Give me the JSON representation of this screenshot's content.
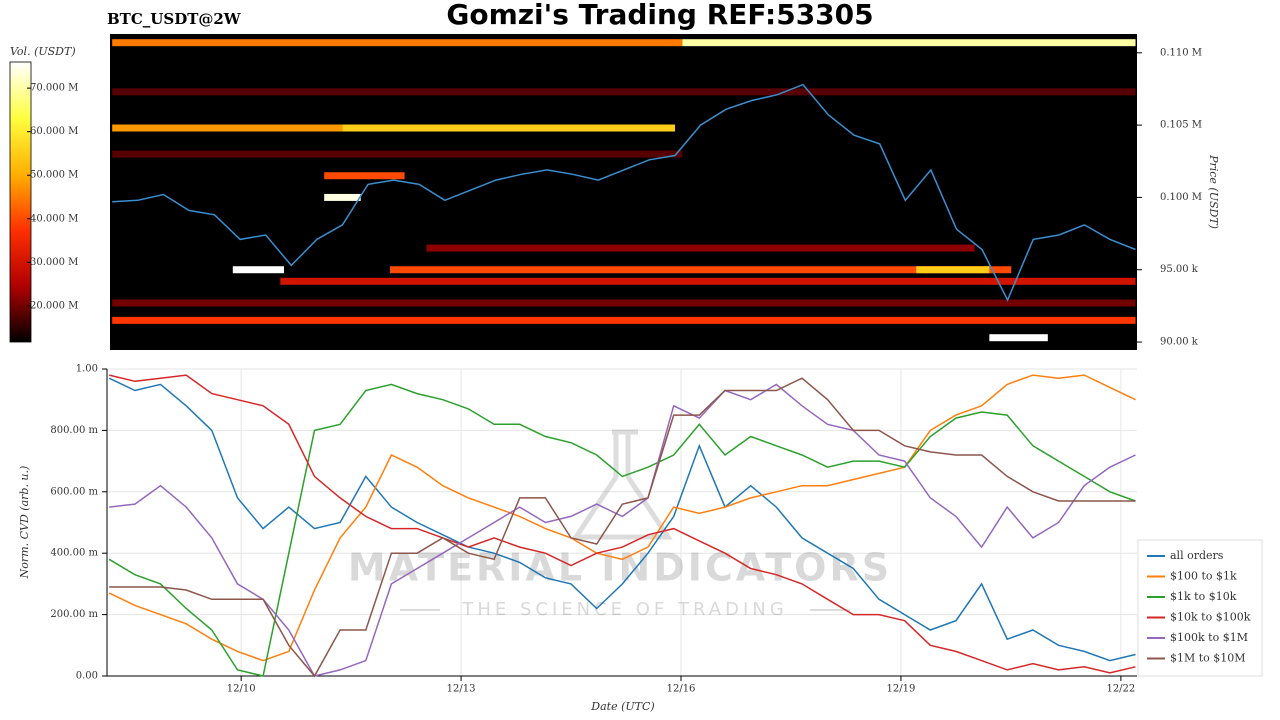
{
  "chart_data": [
    {
      "type": "heatmap",
      "title": "Gomzi's Trading REF:53305",
      "subtitle": "BTC_USDT@2W",
      "xlim": [
        8.17,
        22.22
      ],
      "ylim": [
        89450,
        111300
      ],
      "yticks": [
        {
          "value": 90000,
          "label": "90.00 k"
        },
        {
          "value": 95000,
          "label": "95.00 k"
        },
        {
          "value": 100000,
          "label": "0.100 M"
        },
        {
          "value": 105000,
          "label": "0.105 M"
        },
        {
          "value": 110000,
          "label": "0.110 M"
        }
      ],
      "ylabel": "Price (USDT)",
      "colorbar_label": "Vol. (USDT)",
      "clim": [
        11700000,
        76000000
      ],
      "cticks": [
        {
          "value": 20000000,
          "label": "20.000 M"
        },
        {
          "value": 30000000,
          "label": "30.000 M"
        },
        {
          "value": 40000000,
          "label": "40.000 M"
        },
        {
          "value": 50000000,
          "label": "50.000 M"
        },
        {
          "value": 60000000,
          "label": "60.000 M"
        },
        {
          "value": 70000000,
          "label": "70.000 M"
        }
      ],
      "colormap": [
        "#000000",
        "#b00000",
        "#ff3000",
        "#ffb000",
        "#ffff40",
        "#ffffff"
      ],
      "bands": [
        {
          "price": 110700,
          "start": 8.2,
          "end": 16.0,
          "volume": 45000000
        },
        {
          "price": 110700,
          "start": 16.0,
          "end": 22.2,
          "volume": 70000000
        },
        {
          "price": 107300,
          "start": 8.2,
          "end": 22.2,
          "volume": 18000000
        },
        {
          "price": 104800,
          "start": 8.2,
          "end": 11.35,
          "volume": 48000000
        },
        {
          "price": 104800,
          "start": 11.35,
          "end": 15.9,
          "volume": 55000000
        },
        {
          "price": 103000,
          "start": 8.2,
          "end": 16.0,
          "volume": 18000000
        },
        {
          "price": 101500,
          "start": 11.1,
          "end": 12.2,
          "volume": 40000000
        },
        {
          "price": 100000,
          "start": 11.1,
          "end": 11.6,
          "volume": 74000000
        },
        {
          "price": 96500,
          "start": 12.5,
          "end": 20.0,
          "volume": 22000000
        },
        {
          "price": 95000,
          "start": 12.0,
          "end": 20.5,
          "volume": 40000000
        },
        {
          "price": 95000,
          "start": 19.2,
          "end": 20.2,
          "volume": 55000000
        },
        {
          "price": 95000,
          "start": 9.85,
          "end": 10.55,
          "volume": 76000000
        },
        {
          "price": 94200,
          "start": 10.5,
          "end": 22.2,
          "volume": 30000000
        },
        {
          "price": 92700,
          "start": 8.2,
          "end": 22.2,
          "volume": 20000000
        },
        {
          "price": 91500,
          "start": 8.2,
          "end": 22.2,
          "volume": 38000000
        },
        {
          "price": 90300,
          "start": 20.2,
          "end": 21.0,
          "volume": 76000000
        }
      ],
      "price_color": "#3a8fd0",
      "x": [
        8.2,
        8.55,
        8.9,
        9.25,
        9.6,
        9.95,
        10.3,
        10.65,
        11.0,
        11.35,
        11.7,
        12.05,
        12.4,
        12.75,
        13.1,
        13.45,
        13.8,
        14.15,
        14.5,
        14.85,
        15.2,
        15.55,
        15.9,
        16.25,
        16.6,
        16.95,
        17.3,
        17.65,
        18.0,
        18.35,
        18.7,
        19.05,
        19.4,
        19.75,
        20.1,
        20.45,
        20.8,
        21.15,
        21.5,
        21.85,
        22.2
      ],
      "price": [
        99700,
        99800,
        100200,
        99100,
        98800,
        97100,
        97400,
        95300,
        97100,
        98100,
        100900,
        101200,
        100900,
        99800,
        100500,
        101200,
        101600,
        101900,
        101600,
        101200,
        101900,
        102600,
        102900,
        105000,
        106100,
        106700,
        107100,
        107800,
        105700,
        104300,
        103700,
        99800,
        101900,
        97800,
        96400,
        92900,
        97100,
        97400,
        98100,
        97100,
        96400
      ]
    },
    {
      "type": "line",
      "xlim": [
        8.17,
        22.22
      ],
      "xticks": [
        {
          "value": 10,
          "label": "12/10"
        },
        {
          "value": 13,
          "label": "12/13"
        },
        {
          "value": 16,
          "label": "12/16"
        },
        {
          "value": 19,
          "label": "12/19"
        },
        {
          "value": 22,
          "label": "12/22"
        }
      ],
      "ylim": [
        0,
        1
      ],
      "yticks": [
        {
          "value": 0,
          "label": "0.00"
        },
        {
          "value": 0.2,
          "label": "200.00 m"
        },
        {
          "value": 0.4,
          "label": "400.00 m"
        },
        {
          "value": 0.6,
          "label": "600.00 m"
        },
        {
          "value": 0.8,
          "label": "800.00 m"
        },
        {
          "value": 1,
          "label": "1.00"
        }
      ],
      "xlabel": "Date (UTC)",
      "ylabel": "Norm. CVD (arb. u.)",
      "grid": true,
      "x": [
        8.2,
        8.55,
        8.9,
        9.25,
        9.6,
        9.95,
        10.3,
        10.65,
        11.0,
        11.35,
        11.7,
        12.05,
        12.4,
        12.75,
        13.1,
        13.45,
        13.8,
        14.15,
        14.5,
        14.85,
        15.2,
        15.55,
        15.9,
        16.25,
        16.6,
        16.95,
        17.3,
        17.65,
        18.0,
        18.35,
        18.7,
        19.05,
        19.4,
        19.75,
        20.1,
        20.45,
        20.8,
        21.15,
        21.5,
        21.85,
        22.2
      ],
      "series": [
        {
          "name": "all orders",
          "color": "#1f77b4",
          "values": [
            0.97,
            0.93,
            0.95,
            0.88,
            0.8,
            0.58,
            0.48,
            0.55,
            0.48,
            0.5,
            0.65,
            0.55,
            0.5,
            0.46,
            0.42,
            0.4,
            0.37,
            0.32,
            0.3,
            0.22,
            0.3,
            0.4,
            0.52,
            0.75,
            0.55,
            0.62,
            0.55,
            0.45,
            0.4,
            0.35,
            0.25,
            0.2,
            0.15,
            0.18,
            0.3,
            0.12,
            0.15,
            0.1,
            0.08,
            0.05,
            0.07
          ]
        },
        {
          "name": "$100 to $1k",
          "color": "#ff7f0e",
          "values": [
            0.27,
            0.23,
            0.2,
            0.17,
            0.12,
            0.08,
            0.05,
            0.08,
            0.28,
            0.45,
            0.55,
            0.72,
            0.68,
            0.62,
            0.58,
            0.55,
            0.52,
            0.48,
            0.45,
            0.4,
            0.38,
            0.42,
            0.55,
            0.53,
            0.55,
            0.58,
            0.6,
            0.62,
            0.62,
            0.64,
            0.66,
            0.68,
            0.8,
            0.85,
            0.88,
            0.95,
            0.98,
            0.97,
            0.98,
            0.94,
            0.9
          ]
        },
        {
          "name": "$1k to $10k",
          "color": "#2ca02c",
          "values": [
            0.38,
            0.33,
            0.3,
            0.22,
            0.15,
            0.02,
            0.0,
            0.4,
            0.8,
            0.82,
            0.93,
            0.95,
            0.92,
            0.9,
            0.87,
            0.82,
            0.82,
            0.78,
            0.76,
            0.72,
            0.65,
            0.68,
            0.72,
            0.82,
            0.72,
            0.78,
            0.75,
            0.72,
            0.68,
            0.7,
            0.7,
            0.68,
            0.78,
            0.84,
            0.86,
            0.85,
            0.75,
            0.7,
            0.65,
            0.6,
            0.57
          ]
        },
        {
          "name": "$10k to $100k",
          "color": "#d62728",
          "values": [
            0.98,
            0.96,
            0.97,
            0.98,
            0.92,
            0.9,
            0.88,
            0.82,
            0.65,
            0.58,
            0.52,
            0.48,
            0.48,
            0.45,
            0.42,
            0.45,
            0.42,
            0.4,
            0.36,
            0.4,
            0.42,
            0.46,
            0.48,
            0.44,
            0.4,
            0.35,
            0.33,
            0.3,
            0.25,
            0.2,
            0.2,
            0.18,
            0.1,
            0.08,
            0.05,
            0.02,
            0.04,
            0.02,
            0.03,
            0.01,
            0.03
          ]
        },
        {
          "name": "$100k to $1M",
          "color": "#9467bd",
          "values": [
            0.55,
            0.56,
            0.62,
            0.55,
            0.45,
            0.3,
            0.25,
            0.15,
            0.0,
            0.02,
            0.05,
            0.3,
            0.35,
            0.4,
            0.45,
            0.5,
            0.55,
            0.5,
            0.52,
            0.56,
            0.52,
            0.58,
            0.88,
            0.84,
            0.93,
            0.9,
            0.95,
            0.88,
            0.82,
            0.8,
            0.72,
            0.7,
            0.58,
            0.52,
            0.42,
            0.55,
            0.45,
            0.5,
            0.62,
            0.68,
            0.72
          ]
        },
        {
          "name": "$1M to $10M",
          "color": "#8c564b",
          "values": [
            0.29,
            0.29,
            0.29,
            0.28,
            0.25,
            0.25,
            0.25,
            0.1,
            0.0,
            0.15,
            0.15,
            0.4,
            0.4,
            0.45,
            0.4,
            0.38,
            0.58,
            0.58,
            0.45,
            0.43,
            0.56,
            0.58,
            0.85,
            0.85,
            0.93,
            0.93,
            0.93,
            0.97,
            0.9,
            0.8,
            0.8,
            0.75,
            0.73,
            0.72,
            0.72,
            0.65,
            0.6,
            0.57,
            0.57,
            0.57,
            0.57
          ]
        }
      ],
      "legend": "lower right"
    }
  ],
  "watermark": {
    "name": "MATERIAL INDICATORS",
    "tagline": "THE SCIENCE OF TRADING"
  }
}
